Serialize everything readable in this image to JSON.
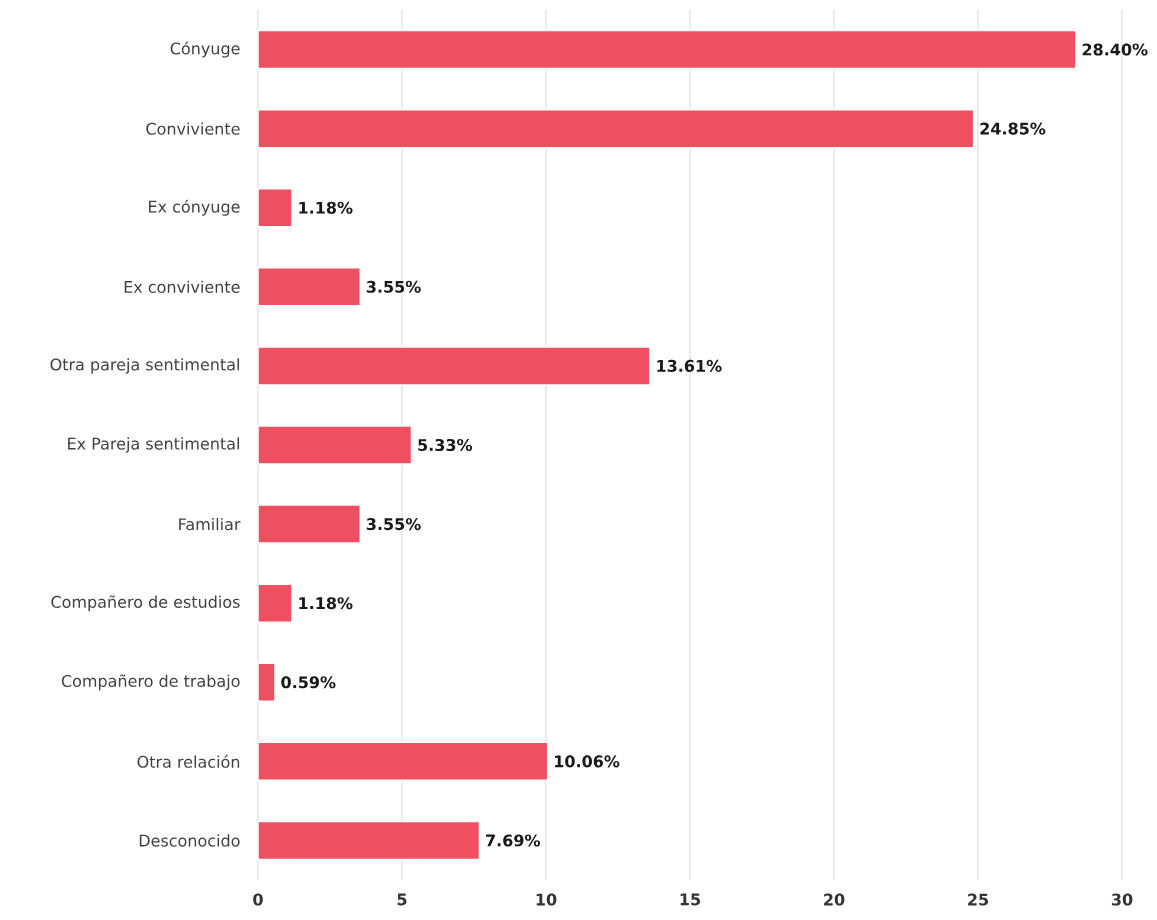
{
  "chart_data": {
    "type": "bar",
    "orientation": "horizontal",
    "categories": [
      "Cónyuge",
      "Conviviente",
      "Ex cónyuge",
      "Ex conviviente",
      "Otra pareja sentimental",
      "Ex Pareja sentimental",
      "Familiar",
      "Compañero de estudios",
      "Compañero de trabajo",
      "Otra relación",
      "Desconocido"
    ],
    "values": [
      28.4,
      24.85,
      1.18,
      3.55,
      13.61,
      5.33,
      3.55,
      1.18,
      0.59,
      10.06,
      7.69
    ],
    "value_labels": [
      "28.40%",
      "24.85%",
      "1.18%",
      "3.55%",
      "13.61%",
      "5.33%",
      "3.55%",
      "1.18%",
      "0.59%",
      "10.06%",
      "7.69%"
    ],
    "color": "#ee5062",
    "xlim": [
      0,
      30
    ],
    "xticks": [
      0,
      5,
      10,
      15,
      20,
      25,
      30
    ],
    "grid": "x"
  }
}
